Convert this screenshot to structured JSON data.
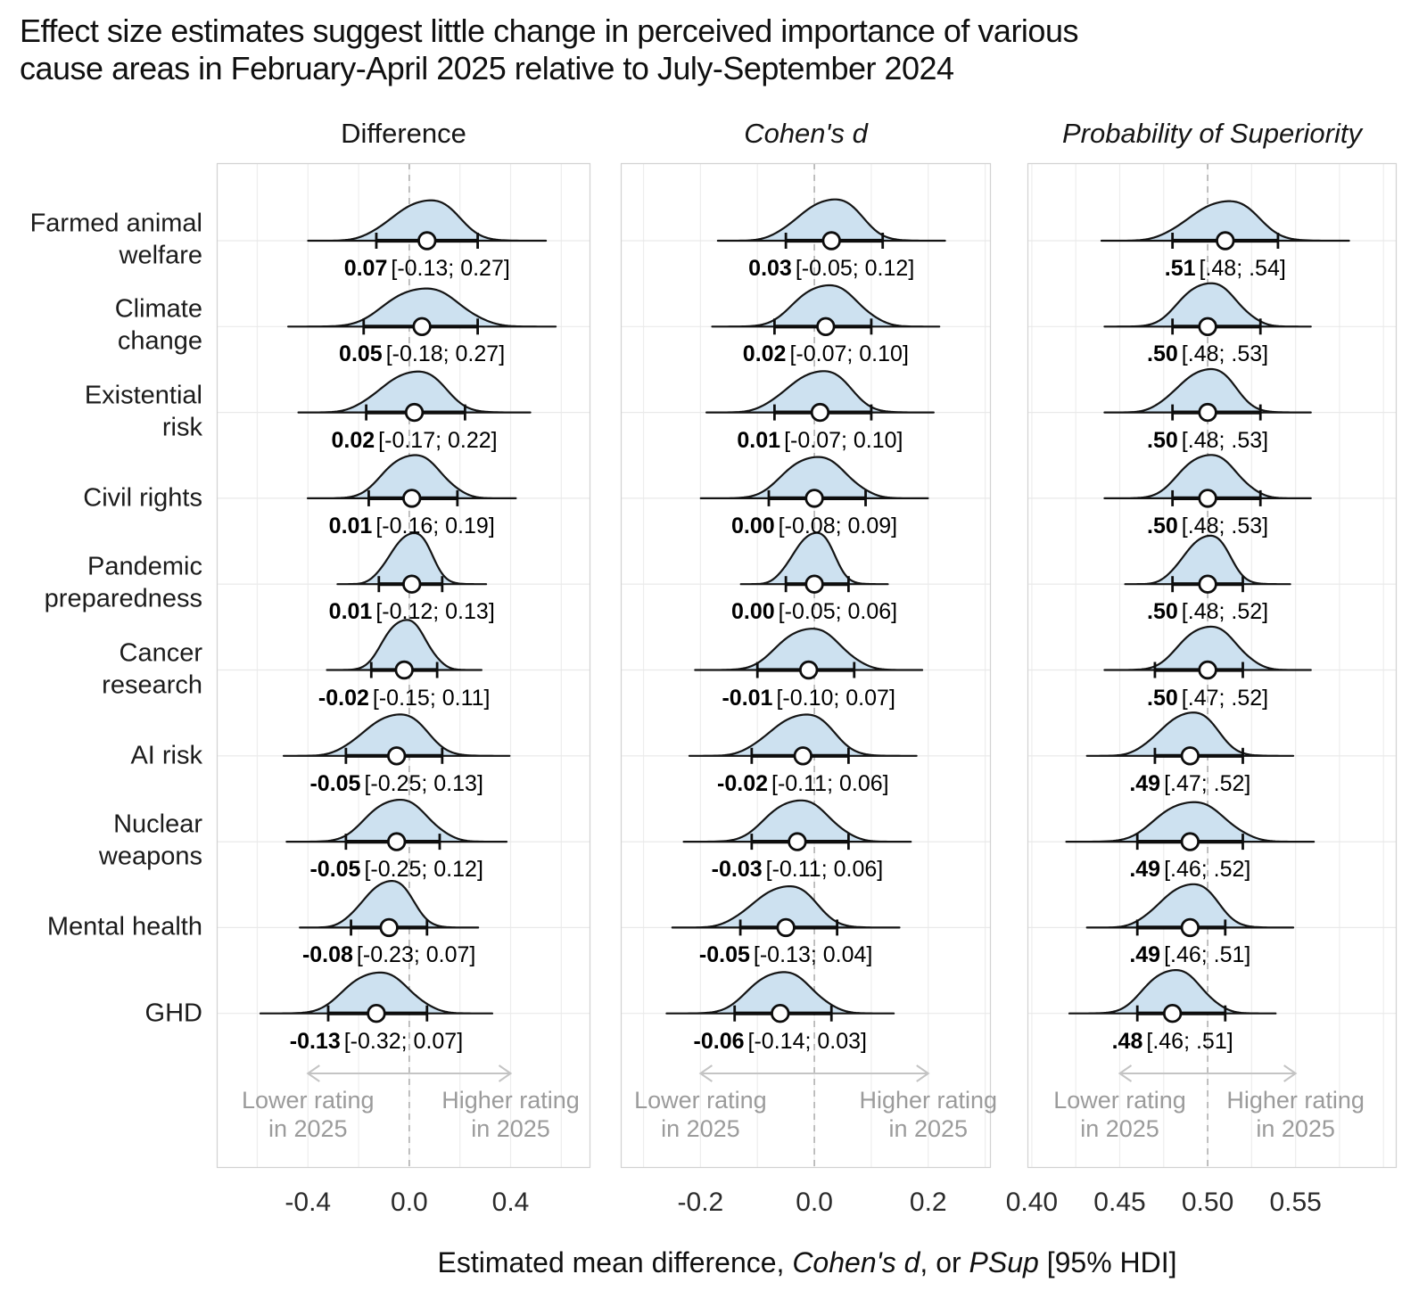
{
  "chart_data": {
    "type": "ridgeline-forest",
    "title_lines": [
      "Effect size estimates suggest little change in perceived importance of various",
      "cause areas in February-April 2025 relative to July-September 2024"
    ],
    "xaxis_label_parts": [
      {
        "text": "Estimated mean difference, ",
        "italic": false
      },
      {
        "text": "Cohen's d",
        "italic": true
      },
      {
        "text": ", or ",
        "italic": false
      },
      {
        "text": "PSup",
        "italic": true
      },
      {
        "text": " [95% HDI]",
        "italic": false
      }
    ],
    "colors": {
      "density_fill": "#cde1f0",
      "density_outline": "#141414",
      "interval": "#0d0d0d",
      "point_fill": "#ffffff",
      "point_stroke": "#0d0d0d",
      "grid": "#ededed",
      "row_grid": "#e9e9e9",
      "panel_border": "#d2d2d2",
      "dashed_line": "#b0b0b0",
      "arrow": "#c4c4c4",
      "annotation_text": "#9b9b9b",
      "tick_text": "#2b2b2b",
      "title_text": "#101010",
      "value_text": "#000000"
    },
    "legend": "none",
    "grid": "on",
    "panels": [
      {
        "id": "difference",
        "label": "Difference",
        "italic": false,
        "xlim": [
          -0.76,
          0.715
        ],
        "ticks": [
          -0.4,
          0.0,
          0.4
        ],
        "tick_labels": [
          "-0.4",
          "0.0",
          "0.4"
        ],
        "dashed_at": 0.0,
        "grid_step": 0.2,
        "arrow_span": [
          -0.4,
          0.4
        ]
      },
      {
        "id": "cohens_d",
        "label": "Cohen's d",
        "italic": true,
        "xlim": [
          -0.34,
          0.31
        ],
        "ticks": [
          -0.2,
          0.0,
          0.2
        ],
        "tick_labels": [
          "-0.2",
          "0.0",
          "0.2"
        ],
        "dashed_at": 0.0,
        "grid_step": 0.1,
        "arrow_span": [
          -0.2,
          0.2
        ]
      },
      {
        "id": "psup",
        "label": "Probability of Superiority",
        "italic": true,
        "xlim": [
          0.3975,
          0.6075
        ],
        "ticks": [
          0.4,
          0.45,
          0.5,
          0.55
        ],
        "tick_labels": [
          "0.40",
          "0.45",
          "0.50",
          "0.55"
        ],
        "dashed_at": 0.5,
        "grid_step": 0.025,
        "arrow_span": [
          0.45,
          0.55
        ]
      }
    ],
    "annotation": {
      "left_lines": [
        "Lower rating",
        "in 2025"
      ],
      "right_lines": [
        "Higher rating",
        "in 2025"
      ]
    },
    "rows": [
      {
        "label_lines": [
          "Farmed animal",
          "welfare"
        ],
        "cells": [
          {
            "est": 0.07,
            "lo": -0.13,
            "hi": 0.27,
            "est_label": "0.07",
            "interval_label": "[-0.13; 0.27]"
          },
          {
            "est": 0.03,
            "lo": -0.05,
            "hi": 0.12,
            "est_label": "0.03",
            "interval_label": "[-0.05; 0.12]"
          },
          {
            "est": 0.51,
            "lo": 0.48,
            "hi": 0.54,
            "est_label": ".51",
            "interval_label": "[.48; .54]"
          }
        ]
      },
      {
        "label_lines": [
          "Climate",
          "change"
        ],
        "cells": [
          {
            "est": 0.05,
            "lo": -0.18,
            "hi": 0.27,
            "est_label": "0.05",
            "interval_label": "[-0.18; 0.27]"
          },
          {
            "est": 0.02,
            "lo": -0.07,
            "hi": 0.1,
            "est_label": "0.02",
            "interval_label": "[-0.07; 0.10]"
          },
          {
            "est": 0.5,
            "lo": 0.48,
            "hi": 0.53,
            "est_label": ".50",
            "interval_label": "[.48; .53]"
          }
        ]
      },
      {
        "label_lines": [
          "Existential",
          "risk"
        ],
        "cells": [
          {
            "est": 0.02,
            "lo": -0.17,
            "hi": 0.22,
            "est_label": "0.02",
            "interval_label": "[-0.17; 0.22]"
          },
          {
            "est": 0.01,
            "lo": -0.07,
            "hi": 0.1,
            "est_label": "0.01",
            "interval_label": "[-0.07; 0.10]"
          },
          {
            "est": 0.5,
            "lo": 0.48,
            "hi": 0.53,
            "est_label": ".50",
            "interval_label": "[.48; .53]"
          }
        ]
      },
      {
        "label_lines": [
          "Civil rights"
        ],
        "cells": [
          {
            "est": 0.01,
            "lo": -0.16,
            "hi": 0.19,
            "est_label": "0.01",
            "interval_label": "[-0.16; 0.19]"
          },
          {
            "est": 0.0,
            "lo": -0.08,
            "hi": 0.09,
            "est_label": "0.00",
            "interval_label": "[-0.08; 0.09]"
          },
          {
            "est": 0.5,
            "lo": 0.48,
            "hi": 0.53,
            "est_label": ".50",
            "interval_label": "[.48; .53]"
          }
        ]
      },
      {
        "label_lines": [
          "Pandemic",
          "preparedness"
        ],
        "cells": [
          {
            "est": 0.01,
            "lo": -0.12,
            "hi": 0.13,
            "est_label": "0.01",
            "interval_label": "[-0.12; 0.13]"
          },
          {
            "est": 0.0,
            "lo": -0.05,
            "hi": 0.06,
            "est_label": "0.00",
            "interval_label": "[-0.05; 0.06]"
          },
          {
            "est": 0.5,
            "lo": 0.48,
            "hi": 0.52,
            "est_label": ".50",
            "interval_label": "[.48; .52]"
          }
        ]
      },
      {
        "label_lines": [
          "Cancer",
          "research"
        ],
        "cells": [
          {
            "est": -0.02,
            "lo": -0.15,
            "hi": 0.11,
            "est_label": "-0.02",
            "interval_label": "[-0.15; 0.11]"
          },
          {
            "est": -0.01,
            "lo": -0.1,
            "hi": 0.07,
            "est_label": "-0.01",
            "interval_label": "[-0.10; 0.07]"
          },
          {
            "est": 0.5,
            "lo": 0.47,
            "hi": 0.52,
            "est_label": ".50",
            "interval_label": "[.47; .52]"
          }
        ]
      },
      {
        "label_lines": [
          "AI risk"
        ],
        "cells": [
          {
            "est": -0.05,
            "lo": -0.25,
            "hi": 0.13,
            "est_label": "-0.05",
            "interval_label": "[-0.25; 0.13]"
          },
          {
            "est": -0.02,
            "lo": -0.11,
            "hi": 0.06,
            "est_label": "-0.02",
            "interval_label": "[-0.11; 0.06]"
          },
          {
            "est": 0.49,
            "lo": 0.47,
            "hi": 0.52,
            "est_label": ".49",
            "interval_label": "[.47; .52]"
          }
        ]
      },
      {
        "label_lines": [
          "Nuclear",
          "weapons"
        ],
        "cells": [
          {
            "est": -0.05,
            "lo": -0.25,
            "hi": 0.12,
            "est_label": "-0.05",
            "interval_label": "[-0.25; 0.12]"
          },
          {
            "est": -0.03,
            "lo": -0.11,
            "hi": 0.06,
            "est_label": "-0.03",
            "interval_label": "[-0.11; 0.06]"
          },
          {
            "est": 0.49,
            "lo": 0.46,
            "hi": 0.52,
            "est_label": ".49",
            "interval_label": "[.46; .52]"
          }
        ]
      },
      {
        "label_lines": [
          "Mental health"
        ],
        "cells": [
          {
            "est": -0.08,
            "lo": -0.23,
            "hi": 0.07,
            "est_label": "-0.08",
            "interval_label": "[-0.23; 0.07]"
          },
          {
            "est": -0.05,
            "lo": -0.13,
            "hi": 0.04,
            "est_label": "-0.05",
            "interval_label": "[-0.13; 0.04]"
          },
          {
            "est": 0.49,
            "lo": 0.46,
            "hi": 0.51,
            "est_label": ".49",
            "interval_label": "[.46; .51]"
          }
        ]
      },
      {
        "label_lines": [
          "GHD"
        ],
        "cells": [
          {
            "est": -0.13,
            "lo": -0.32,
            "hi": 0.07,
            "est_label": "-0.13",
            "interval_label": "[-0.32; 0.07]"
          },
          {
            "est": -0.06,
            "lo": -0.14,
            "hi": 0.03,
            "est_label": "-0.06",
            "interval_label": "[-0.14; 0.03]"
          },
          {
            "est": 0.48,
            "lo": 0.46,
            "hi": 0.51,
            "est_label": ".48",
            "interval_label": "[.46; .51]"
          }
        ]
      }
    ]
  }
}
